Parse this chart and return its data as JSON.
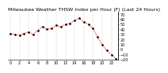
{
  "title": "Milwaukee Weather THSW Index per Hour (F) (Last 24 Hours)",
  "background_color": "#ffffff",
  "line_color": "#ff0000",
  "marker_color": "#000000",
  "grid_color": "#888888",
  "ylim": [
    -20,
    75
  ],
  "hours": [
    0,
    1,
    2,
    3,
    4,
    5,
    6,
    7,
    8,
    9,
    10,
    11,
    12,
    13,
    14,
    15,
    16,
    17,
    18,
    19,
    20,
    21,
    22,
    23
  ],
  "values": [
    32,
    30,
    28,
    32,
    35,
    30,
    38,
    45,
    40,
    42,
    48,
    45,
    50,
    52,
    58,
    62,
    55,
    50,
    42,
    25,
    10,
    -2,
    -10,
    -18
  ],
  "title_fontsize": 4.5,
  "tick_fontsize": 3.5,
  "line_width": 0.7,
  "marker_size": 1.8,
  "ytick_interval": 10,
  "xtick_step": 2
}
